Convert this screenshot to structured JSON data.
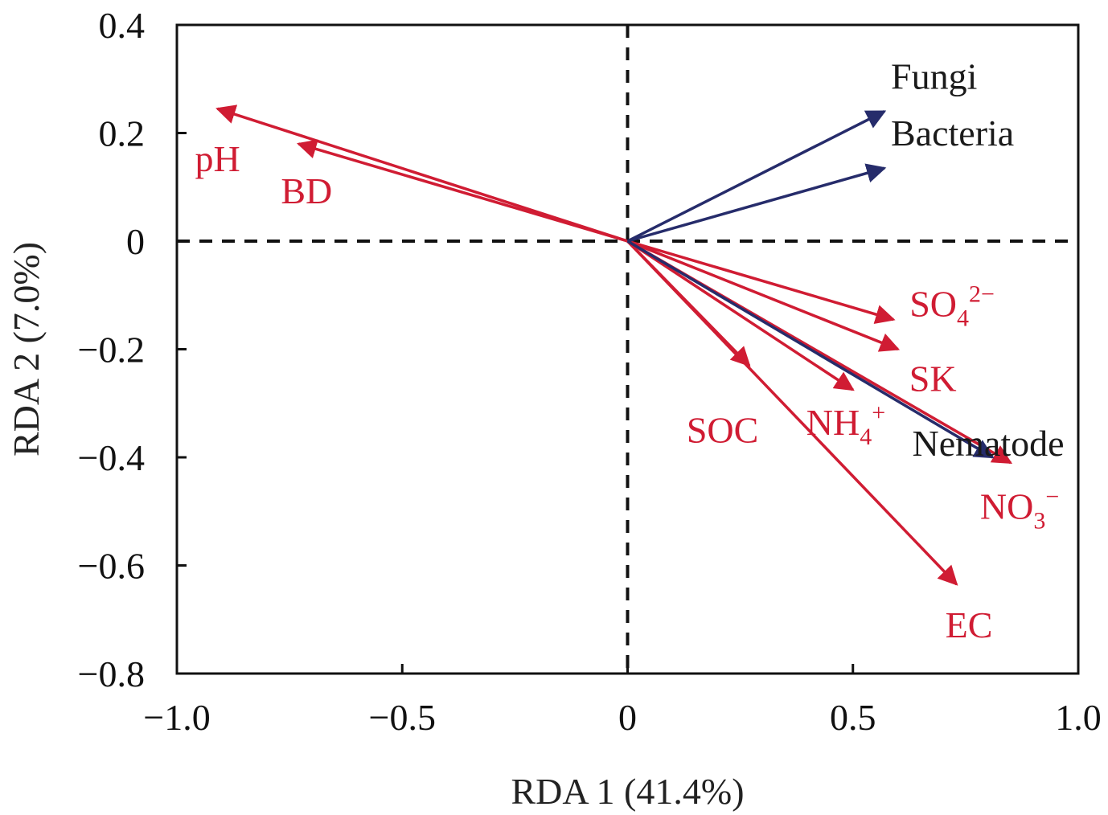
{
  "chart_data": {
    "type": "scatter",
    "subtype": "rda-biplot",
    "title": "",
    "xlabel": "RDA 1 (41.4%)",
    "ylabel": "RDA 2 (7.0%)",
    "xlim": [
      -1.0,
      1.0
    ],
    "ylim": [
      -0.8,
      0.4
    ],
    "xticks": [
      {
        "value": -1.0,
        "label": "−1.0"
      },
      {
        "value": -0.5,
        "label": "−0.5"
      },
      {
        "value": 0,
        "label": "0"
      },
      {
        "value": 0.5,
        "label": "0.5"
      },
      {
        "value": 1.0,
        "label": "1.0"
      }
    ],
    "yticks": [
      {
        "value": 0.4,
        "label": "0.4"
      },
      {
        "value": 0.2,
        "label": "0.2"
      },
      {
        "value": 0,
        "label": "0"
      },
      {
        "value": -0.2,
        "label": "−0.2"
      },
      {
        "value": -0.4,
        "label": "−0.4"
      },
      {
        "value": -0.6,
        "label": "−0.6"
      },
      {
        "value": -0.8,
        "label": "−0.8"
      }
    ],
    "grid": false,
    "zero_lines": "dashed",
    "colors": {
      "environmental": "#d01c33",
      "response": "#262c6b",
      "axis": "#111111"
    },
    "series": [
      {
        "name": "response",
        "vectors": [
          {
            "key": "fungi",
            "label": "Fungi",
            "x": 0.57,
            "y": 0.24
          },
          {
            "key": "bacteria",
            "label": "Bacteria",
            "x": 0.57,
            "y": 0.135
          },
          {
            "key": "nematode",
            "label": "Nematode",
            "x": 0.81,
            "y": -0.4
          }
        ]
      },
      {
        "name": "environmental",
        "vectors": [
          {
            "key": "ph",
            "label": "pH",
            "x": -0.91,
            "y": 0.245
          },
          {
            "key": "bd",
            "label": "BD",
            "x": -0.73,
            "y": 0.18
          },
          {
            "key": "so4",
            "label": "SO",
            "sub": "4",
            "sup": "2−",
            "x": 0.59,
            "y": -0.145
          },
          {
            "key": "sk",
            "label": "SK",
            "x": 0.6,
            "y": -0.2
          },
          {
            "key": "soc",
            "label": "SOC",
            "x": 0.27,
            "y": -0.23
          },
          {
            "key": "nh4",
            "label": "NH",
            "sub": "4",
            "sup": "+",
            "x": 0.5,
            "y": -0.275
          },
          {
            "key": "no3",
            "label": "NO",
            "sub": "3",
            "sup": "−",
            "x": 0.85,
            "y": -0.41
          },
          {
            "key": "ec",
            "label": "EC",
            "x": 0.73,
            "y": -0.635
          }
        ]
      }
    ]
  }
}
